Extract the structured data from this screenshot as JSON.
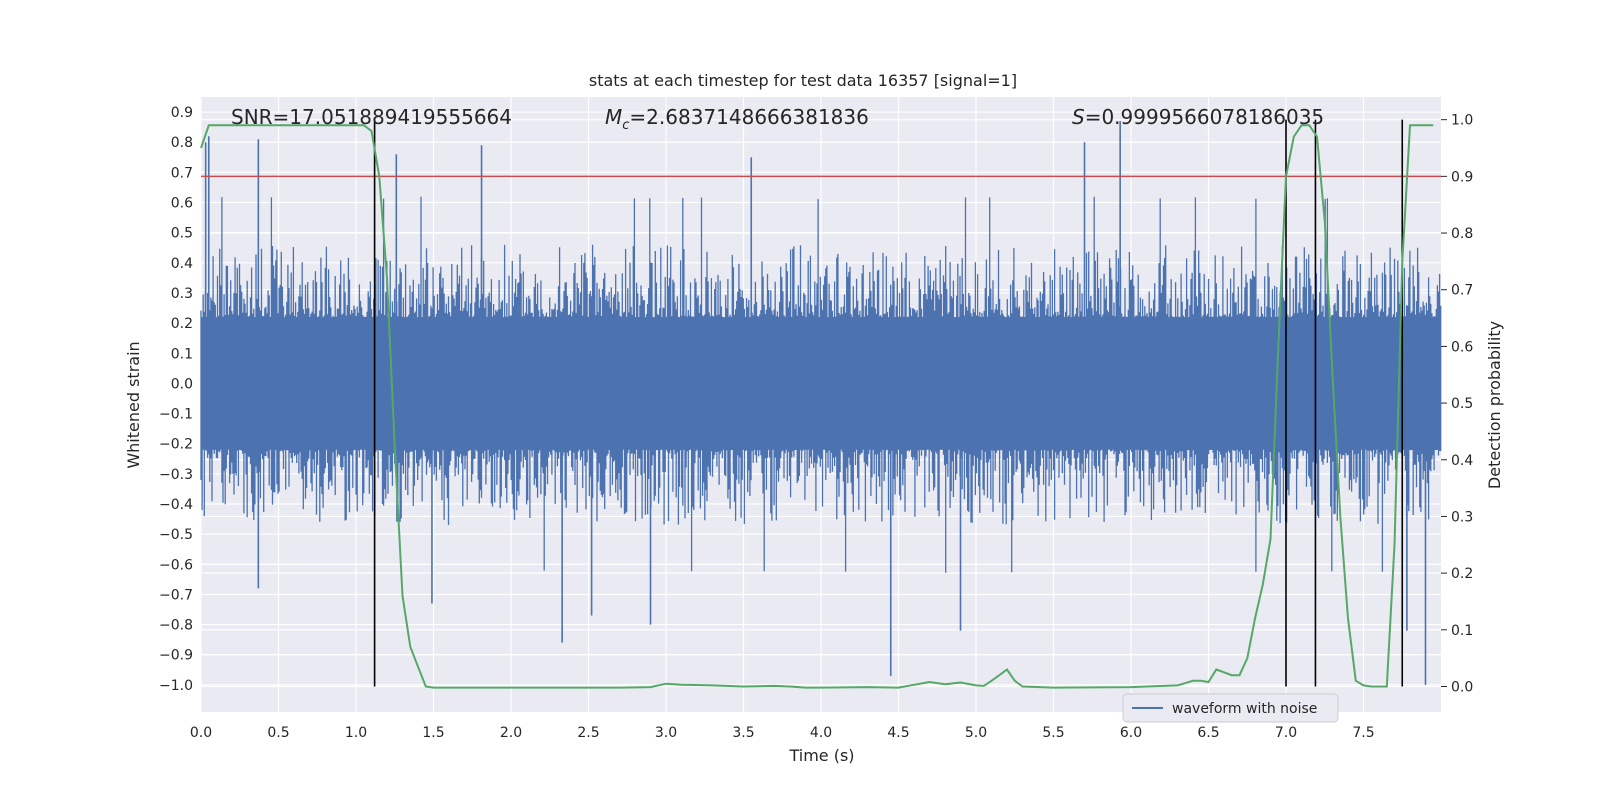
{
  "chart_data": {
    "type": "line",
    "title": "stats at each timestep for test data 16357 [signal=1]",
    "xlabel": "Time (s)",
    "ylabel": "Whitened strain",
    "y2label": "Detection probability",
    "xlim": [
      0.0,
      8.0
    ],
    "ylim": [
      -1.09,
      0.95
    ],
    "y2lim": [
      -0.045,
      1.04
    ],
    "xticks": [
      "0.0",
      "0.5",
      "1.0",
      "1.5",
      "2.0",
      "2.5",
      "3.0",
      "3.5",
      "4.0",
      "4.5",
      "5.0",
      "5.5",
      "6.0",
      "6.5",
      "7.0",
      "7.5"
    ],
    "yticks": [
      "0.9",
      "0.8",
      "0.7",
      "0.6",
      "0.5",
      "0.4",
      "0.3",
      "0.2",
      "0.1",
      "0.0",
      "-0.1",
      "-0.2",
      "-0.3",
      "-0.4",
      "-0.5",
      "-0.6",
      "-0.7",
      "-0.8",
      "-0.9",
      "-1.0"
    ],
    "y2ticks": [
      "1.0",
      "0.9",
      "0.8",
      "0.7",
      "0.6",
      "0.5",
      "0.4",
      "0.3",
      "0.2",
      "0.1",
      "0.0"
    ],
    "annotations": {
      "snr": "SNR=17.051889419555664",
      "mc_symbol": "M",
      "mc_sub": "c",
      "mc_value": "=2.6837148666381836",
      "s_symbol": "S",
      "s_value": "=0.9999566078186035"
    },
    "threshold_y2": 0.9,
    "threshold_color": "#c44e52",
    "vlines_x": [
      1.12,
      7.0,
      7.19,
      7.75
    ],
    "waveform_color": "#4c72b0",
    "waveform_envelope": {
      "typical_max": 0.47,
      "typical_min": -0.48,
      "spikes": [
        {
          "x": 0.03,
          "y": 0.8
        },
        {
          "x": 0.05,
          "y": 0.82
        },
        {
          "x": 0.37,
          "y": 0.81
        },
        {
          "x": 1.26,
          "y": 0.76
        },
        {
          "x": 1.81,
          "y": 0.79
        },
        {
          "x": 3.55,
          "y": 0.75
        },
        {
          "x": 5.7,
          "y": 0.8
        },
        {
          "x": 5.93,
          "y": 0.87
        },
        {
          "x": 1.49,
          "y": -0.73
        },
        {
          "x": 2.33,
          "y": -0.86
        },
        {
          "x": 2.9,
          "y": -0.8
        },
        {
          "x": 4.45,
          "y": -0.97
        },
        {
          "x": 4.9,
          "y": -0.82
        },
        {
          "x": 7.78,
          "y": -0.82
        },
        {
          "x": 7.9,
          "y": -1.0
        },
        {
          "x": 0.37,
          "y": -0.68
        },
        {
          "x": 2.52,
          "y": -0.77
        }
      ]
    },
    "series": [
      {
        "name": "waveform with noise",
        "color": "#4c72b0",
        "legend": true
      },
      {
        "name": "detection probability",
        "color": "#55a868",
        "axis": "right",
        "legend": false,
        "x": [
          0.0,
          0.05,
          0.1,
          0.3,
          0.5,
          0.7,
          0.9,
          1.0,
          1.05,
          1.1,
          1.15,
          1.2,
          1.25,
          1.3,
          1.35,
          1.4,
          1.45,
          1.5,
          2.0,
          2.3,
          2.5,
          2.7,
          2.9,
          3.0,
          3.1,
          3.3,
          3.5,
          3.7,
          3.8,
          3.9,
          4.0,
          4.3,
          4.5,
          4.6,
          4.7,
          4.8,
          4.9,
          5.0,
          5.05,
          5.1,
          5.15,
          5.2,
          5.25,
          5.3,
          5.5,
          6.0,
          6.3,
          6.4,
          6.45,
          6.5,
          6.55,
          6.6,
          6.65,
          6.7,
          6.75,
          6.8,
          6.85,
          6.9,
          6.95,
          7.0,
          7.05,
          7.1,
          7.15,
          7.2,
          7.25,
          7.3,
          7.35,
          7.4,
          7.45,
          7.5,
          7.55,
          7.6,
          7.65,
          7.7,
          7.75,
          7.8,
          7.85,
          7.9,
          7.95
        ],
        "values": [
          0.95,
          0.99,
          0.99,
          0.99,
          0.99,
          0.99,
          0.99,
          0.99,
          0.99,
          0.98,
          0.9,
          0.72,
          0.42,
          0.16,
          0.07,
          0.035,
          0.0,
          -0.002,
          -0.002,
          -0.002,
          -0.002,
          -0.002,
          -0.001,
          0.005,
          0.003,
          0.002,
          0.0,
          0.001,
          0.0,
          -0.002,
          -0.002,
          -0.001,
          -0.002,
          0.003,
          0.008,
          0.004,
          0.007,
          0.002,
          0.001,
          0.01,
          0.02,
          0.03,
          0.01,
          0.0,
          -0.002,
          -0.001,
          0.002,
          0.01,
          0.01,
          0.008,
          0.03,
          0.025,
          0.02,
          0.02,
          0.05,
          0.12,
          0.18,
          0.26,
          0.6,
          0.9,
          0.97,
          0.99,
          0.99,
          0.97,
          0.82,
          0.55,
          0.3,
          0.12,
          0.01,
          0.002,
          0.0,
          0.0,
          0.0,
          0.25,
          0.75,
          0.99,
          0.99,
          0.99,
          0.99
        ]
      }
    ],
    "legend_position": "lower-right"
  }
}
